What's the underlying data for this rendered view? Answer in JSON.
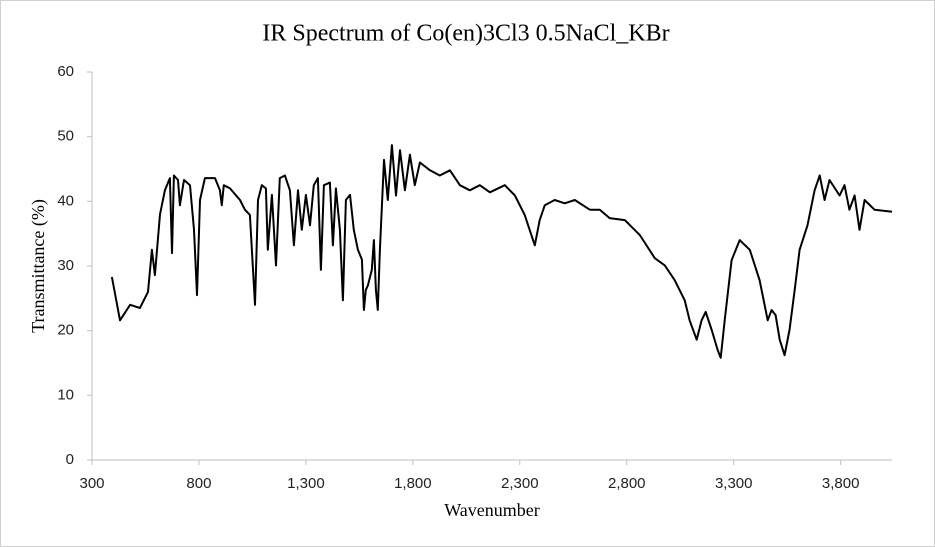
{
  "chart_data": {
    "type": "line",
    "title": "IR Spectrum of Co(en)3Cl3 0.5NaCl_KBr",
    "x_label": "Wavenumber",
    "y_label": "Transmittance (%)",
    "xlim": [
      300,
      4040
    ],
    "ylim": [
      0,
      60
    ],
    "xticks": [
      300,
      {
        "value": 800,
        "label": "800"
      },
      {
        "value": 1300,
        "label": "1,300"
      },
      {
        "value": 1800,
        "label": "1,800"
      },
      {
        "value": 2300,
        "label": "2,300"
      },
      {
        "value": 2800,
        "label": "2,800"
      },
      {
        "value": 3300,
        "label": "3,300"
      },
      {
        "value": 3800,
        "label": "3,800"
      }
    ],
    "yticks": [
      0,
      10,
      20,
      30,
      40,
      50,
      60
    ],
    "series": [
      {
        "color": "#000000",
        "x": [
          393,
          431,
          478,
          524,
          562,
          580,
          594,
          618,
          641,
          664,
          674,
          683,
          702,
          711,
          730,
          758,
          777,
          791,
          805,
          828,
          875,
          898,
          907,
          916,
          945,
          992,
          1015,
          1038,
          1062,
          1076,
          1094,
          1113,
          1122,
          1141,
          1160,
          1178,
          1202,
          1225,
          1244,
          1263,
          1281,
          1300,
          1319,
          1337,
          1356,
          1370,
          1384,
          1412,
          1426,
          1440,
          1459,
          1473,
          1487,
          1506,
          1524,
          1543,
          1562,
          1571,
          1580,
          1590,
          1608,
          1618,
          1627,
          1636,
          1646,
          1665,
          1683,
          1702,
          1721,
          1740,
          1763,
          1786,
          1809,
          1833,
          1880,
          1926,
          1973,
          2020,
          2066,
          2113,
          2160,
          2230,
          2277,
          2323,
          2370,
          2393,
          2417,
          2463,
          2510,
          2557,
          2627,
          2674,
          2720,
          2791,
          2861,
          2931,
          2978,
          3024,
          3071,
          3094,
          3127,
          3150,
          3169,
          3197,
          3225,
          3239,
          3258,
          3290,
          3328,
          3375,
          3421,
          3459,
          3477,
          3496,
          3515,
          3538,
          3561,
          3585,
          3608,
          3645,
          3678,
          3702,
          3725,
          3748,
          3795,
          3818,
          3841,
          3865,
          3888,
          3912,
          3958,
          4040
        ],
        "values": [
          28.3,
          21.6,
          24,
          23.5,
          26,
          32.5,
          28.6,
          38,
          41.7,
          43.6,
          32,
          44,
          43.3,
          39.4,
          43.3,
          42.5,
          35.6,
          25.5,
          40.2,
          43.6,
          43.6,
          41.7,
          39.4,
          42.5,
          42,
          40.2,
          38.7,
          37.9,
          24,
          40.2,
          42.5,
          42,
          32.5,
          41,
          30.1,
          43.6,
          44,
          41.7,
          33.2,
          41.7,
          35.6,
          41,
          36.3,
          42.5,
          43.6,
          29.4,
          42.5,
          42.9,
          33.2,
          42,
          35.6,
          24.7,
          40.2,
          41,
          35.6,
          32.5,
          31,
          23.2,
          26.3,
          27,
          29.4,
          34,
          26.3,
          23.2,
          32.5,
          46.4,
          40.2,
          48.7,
          40.9,
          47.9,
          41.7,
          47.2,
          42.5,
          46,
          44.8,
          44,
          44.8,
          42.5,
          41.7,
          42.5,
          41.4,
          42.5,
          40.9,
          37.9,
          33.2,
          37.1,
          39.4,
          40.2,
          39.7,
          40.2,
          38.7,
          38.7,
          37.4,
          37.1,
          34.8,
          31.2,
          30.1,
          27.8,
          24.7,
          21.6,
          18.6,
          21.6,
          22.9,
          20.1,
          17,
          15.8,
          21.6,
          30.9,
          34,
          32.5,
          27.8,
          21.6,
          23.2,
          22.4,
          18.6,
          16.2,
          20.1,
          26.3,
          32.5,
          36.3,
          41.7,
          44,
          40.2,
          43.3,
          40.9,
          42.5,
          38.7,
          40.9,
          35.6,
          40.2,
          38.7,
          38.4
        ]
      }
    ]
  }
}
